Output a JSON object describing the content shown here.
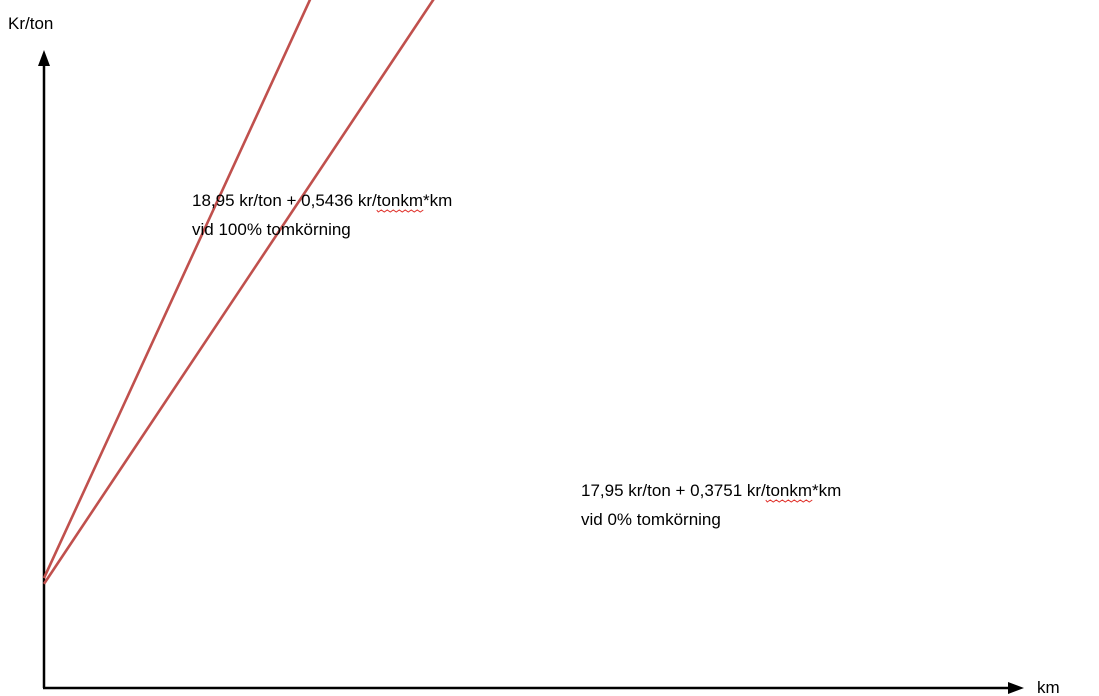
{
  "chart_data": {
    "type": "line",
    "title": "",
    "xlabel": "km",
    "ylabel": "Kr/ton",
    "grid": false,
    "legend": "none",
    "series_color": "#c0504d",
    "series": [
      {
        "annotation": [
          "18,95 kr/ton + 0,5436 kr/tonkm*km",
          "vid 100% tomkörning"
        ],
        "intercept": 18.95,
        "slope": 0.5436
      },
      {
        "annotation": [
          "17,95 kr/ton + 0,3751 kr/tonkm*km",
          "vid 0% tomkörning"
        ],
        "intercept": 17.95,
        "slope": 0.3751
      }
    ]
  }
}
